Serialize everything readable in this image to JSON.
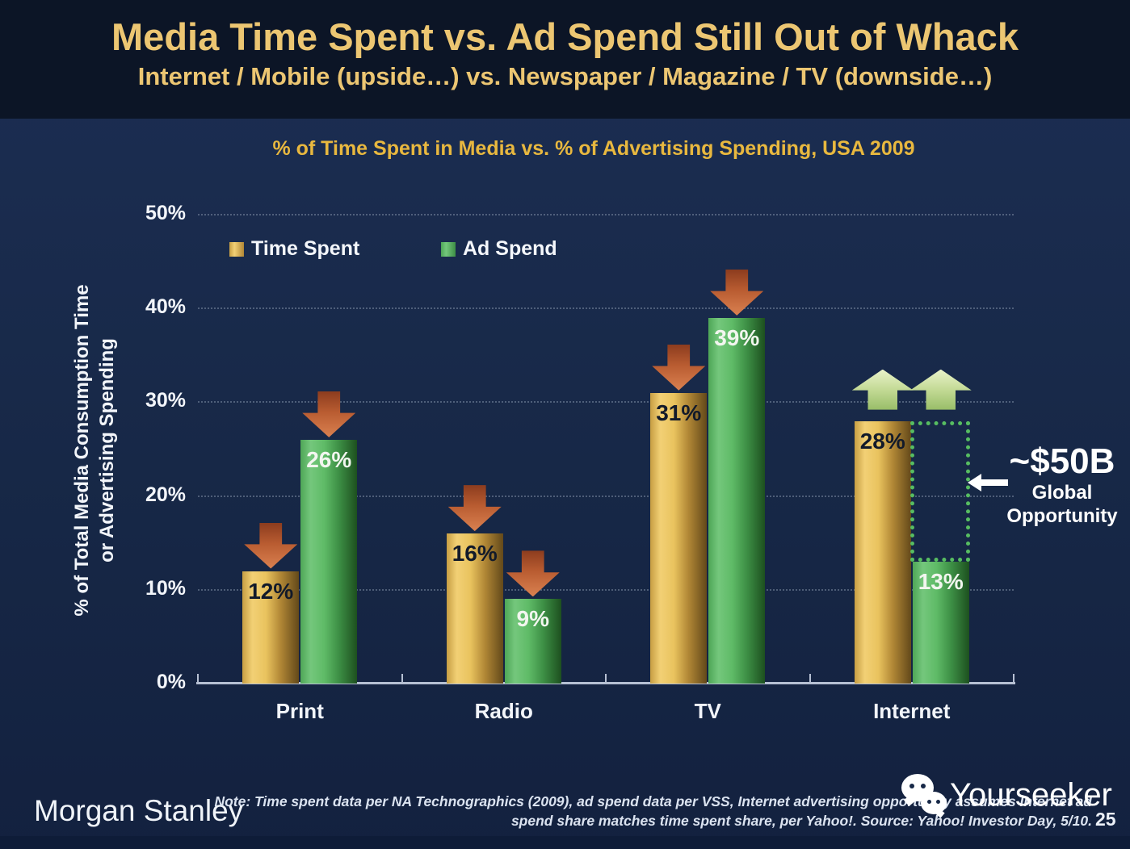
{
  "slide": {
    "title": "Media Time Spent vs. Ad Spend Still Out of Whack",
    "subtitle": "Internet / Mobile (upside…) vs. Newspaper / Magazine / TV (downside…)",
    "page_number": "25"
  },
  "brand": {
    "logo_text": "Morgan Stanley",
    "watermark_text": "Yourseeker"
  },
  "footnote": {
    "line1": "Note: Time spent data per NA Technographics (2009), ad spend data per VSS, Internet advertising opportunity assumes Internet ad",
    "line2": "spend share matches time spent share, per Yahoo!. Source: Yahoo! Investor Day, 5/10."
  },
  "chart_data": {
    "type": "bar",
    "title": "% of Time Spent in Media vs. % of Advertising Spending, USA 2009",
    "ylabel": [
      "% of Total Media Consumption Time",
      "or Advertising Spending"
    ],
    "categories": [
      "Print",
      "Radio",
      "TV",
      "Internet"
    ],
    "series": [
      {
        "name": "Time Spent",
        "values": [
          12,
          16,
          31,
          28
        ],
        "color": "#e3b64e"
      },
      {
        "name": "Ad Spend",
        "values": [
          26,
          9,
          39,
          13
        ],
        "color": "#5cb763"
      }
    ],
    "unit": "%",
    "ylim": [
      0,
      50
    ],
    "yticks": [
      "0%",
      "10%",
      "20%",
      "30%",
      "40%",
      "50%"
    ],
    "grid": "horizontal-dotted",
    "legend_position": "top-left-inside",
    "trend_arrows": {
      "Print": "down",
      "Radio": "down",
      "TV": "down",
      "Internet": "up"
    },
    "annotation": {
      "label_value": "~$50B",
      "label_line2": "Global",
      "label_line3": "Opportunity",
      "gap_category": "Internet",
      "gap_from_pct": 13,
      "gap_to_pct": 28
    }
  },
  "colors": {
    "background": "#172847",
    "header_background": "#0c1526",
    "title_gold": "#ecc672",
    "chart_title_gold": "#e8b83f",
    "bar_gold": "#e3b64e",
    "bar_green": "#5cb763",
    "arrow_down_red": "#b95c31",
    "arrow_up_green": "#c3da95",
    "gap_box_green": "#57bd61",
    "axis_line": "#b6c0d3"
  }
}
